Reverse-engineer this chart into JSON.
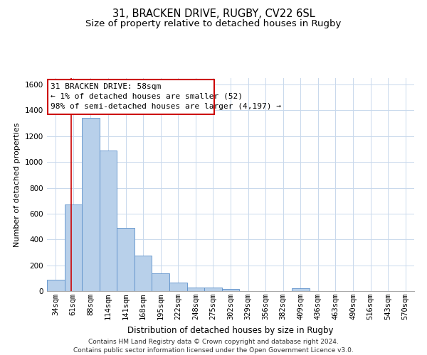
{
  "title": "31, BRACKEN DRIVE, RUGBY, CV22 6SL",
  "subtitle": "Size of property relative to detached houses in Rugby",
  "xlabel": "Distribution of detached houses by size in Rugby",
  "ylabel": "Number of detached properties",
  "categories": [
    "34sqm",
    "61sqm",
    "88sqm",
    "114sqm",
    "141sqm",
    "168sqm",
    "195sqm",
    "222sqm",
    "248sqm",
    "275sqm",
    "302sqm",
    "329sqm",
    "356sqm",
    "382sqm",
    "409sqm",
    "436sqm",
    "463sqm",
    "490sqm",
    "516sqm",
    "543sqm",
    "570sqm"
  ],
  "values": [
    90,
    670,
    1340,
    1090,
    490,
    275,
    135,
    65,
    30,
    30,
    15,
    0,
    0,
    0,
    20,
    0,
    0,
    0,
    0,
    0,
    0
  ],
  "bar_color": "#b8d0ea",
  "bar_edge_color": "#5b8fc9",
  "grid_color": "#c8d8ec",
  "background_color": "#ffffff",
  "annotation_line1": "31 BRACKEN DRIVE: 58sqm",
  "annotation_line2": "← 1% of detached houses are smaller (52)",
  "annotation_line3": "98% of semi-detached houses are larger (4,197) →",
  "annotation_box_color": "#ffffff",
  "annotation_box_edge": "#cc0000",
  "vline_color": "#cc0000",
  "vline_pos": 0.88,
  "ylim": [
    0,
    1650
  ],
  "yticks": [
    0,
    200,
    400,
    600,
    800,
    1000,
    1200,
    1400,
    1600
  ],
  "footer_text": "Contains HM Land Registry data © Crown copyright and database right 2024.\nContains public sector information licensed under the Open Government Licence v3.0.",
  "title_fontsize": 10.5,
  "subtitle_fontsize": 9.5,
  "xlabel_fontsize": 8.5,
  "ylabel_fontsize": 8,
  "tick_fontsize": 7.5,
  "annotation_fontsize": 8,
  "footer_fontsize": 6.5
}
